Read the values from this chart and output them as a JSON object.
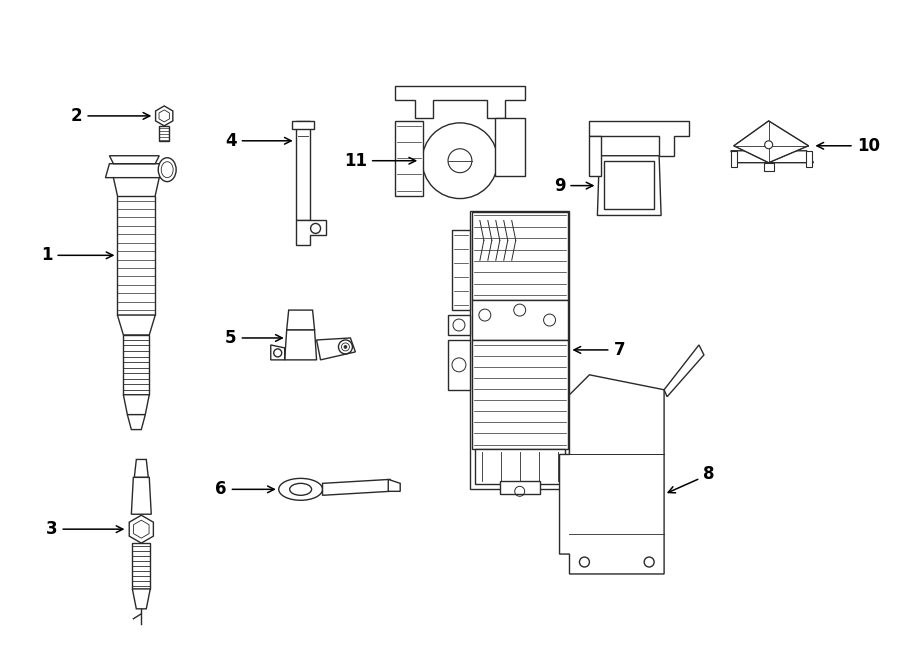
{
  "background": "#ffffff",
  "line_color": "#2a2a2a",
  "lw": 1.0,
  "figsize": [
    9.0,
    6.61
  ],
  "dpi": 100
}
